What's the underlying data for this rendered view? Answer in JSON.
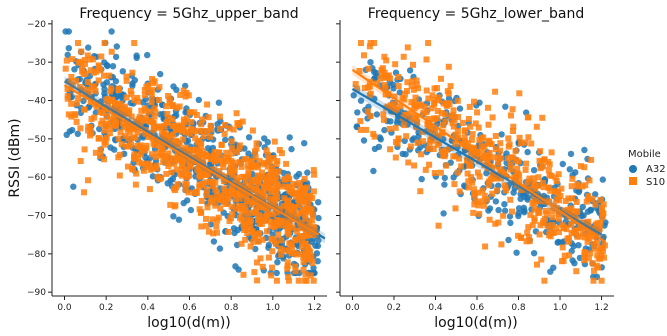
{
  "chart_data": [
    {
      "type": "scatter",
      "title": "Frequency = 5Ghz_upper_band",
      "xlabel": "log10(d(m))",
      "ylabel": "RSSI (dBm)",
      "xlim": [
        -0.06,
        1.26
      ],
      "ylim": [
        -91,
        -19
      ],
      "xticks": [
        "0.0",
        "0.2",
        "0.4",
        "0.6",
        "0.8",
        "1.0",
        "1.2"
      ],
      "yticks": [
        "−90",
        "−80",
        "−70",
        "−60",
        "−50",
        "−40",
        "−30",
        "−20"
      ],
      "grid": false,
      "series": [
        {
          "name": "A32",
          "marker": "circle",
          "color": "#1f77b4",
          "point_count": 700,
          "x_range": [
            0.0,
            1.22
          ],
          "y_range": [
            -85,
            -22
          ],
          "fit": {
            "x": [
              0.0,
              1.25
            ],
            "y": [
              -35,
              -76
            ]
          }
        },
        {
          "name": "S10",
          "marker": "square",
          "color": "#ff7f0e",
          "point_count": 900,
          "x_range": [
            0.0,
            1.2
          ],
          "y_range": [
            -87,
            -25
          ],
          "fit": {
            "x": [
              0.0,
              1.22
            ],
            "y": [
              -36,
              -75
            ]
          }
        }
      ]
    },
    {
      "type": "scatter",
      "title": "Frequency = 5Ghz_lower_band",
      "xlabel": "log10(d(m))",
      "ylabel": "",
      "xlim": [
        -0.06,
        1.26
      ],
      "ylim": [
        -91,
        -19
      ],
      "xticks": [
        "0.0",
        "0.2",
        "0.4",
        "0.6",
        "0.8",
        "1.0",
        "1.2"
      ],
      "grid": false,
      "series": [
        {
          "name": "A32",
          "marker": "circle",
          "color": "#1f77b4",
          "point_count": 350,
          "x_range": [
            0.0,
            1.22
          ],
          "y_range": [
            -86,
            -30
          ],
          "fit": {
            "x": [
              0.0,
              1.2
            ],
            "y": [
              -37,
              -75
            ]
          }
        },
        {
          "name": "S10",
          "marker": "square",
          "color": "#ff7f0e",
          "point_count": 550,
          "x_range": [
            0.0,
            1.22
          ],
          "y_range": [
            -87,
            -25
          ],
          "fit": {
            "x": [
              0.0,
              1.22
            ],
            "y": [
              -32,
              -77
            ]
          }
        }
      ]
    }
  ],
  "legend": {
    "title": "Mobile",
    "placement": "right",
    "items": [
      {
        "label": "A32",
        "color": "#1f77b4",
        "marker": "circle"
      },
      {
        "label": "S10",
        "color": "#ff7f0e",
        "marker": "square"
      }
    ]
  }
}
